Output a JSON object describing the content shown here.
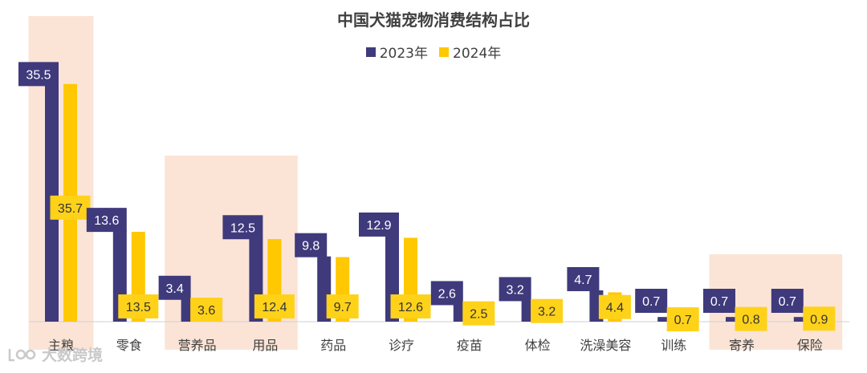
{
  "chart_data": {
    "type": "bar",
    "title": "中国犬猫宠物消费结构占比",
    "xlabel": "",
    "ylabel": "",
    "ylim": [
      0,
      40
    ],
    "legend_position": "top-center",
    "categories": [
      "主粮",
      "零食",
      "营养品",
      "用品",
      "药品",
      "诊疗",
      "疫苗",
      "体检",
      "洗澡美容",
      "训练",
      "寄养",
      "保险"
    ],
    "series": [
      {
        "name": "2023年",
        "color": "#3f3a7c",
        "values": [
          35.5,
          13.6,
          3.4,
          12.5,
          9.8,
          12.9,
          2.6,
          3.2,
          4.7,
          0.7,
          0.7,
          0.7
        ]
      },
      {
        "name": "2024年",
        "color": "#ffc800",
        "values": [
          35.7,
          13.5,
          3.6,
          12.4,
          9.7,
          12.6,
          2.5,
          3.2,
          4.4,
          0.7,
          0.8,
          0.9
        ]
      }
    ],
    "highlight_color": "#fbe4d6",
    "highlighted_categories": [
      "主粮",
      "营养品",
      "用品",
      "寄养",
      "保险"
    ]
  },
  "watermark": {
    "text": "大数跨境",
    "icon": "logo-icon"
  }
}
